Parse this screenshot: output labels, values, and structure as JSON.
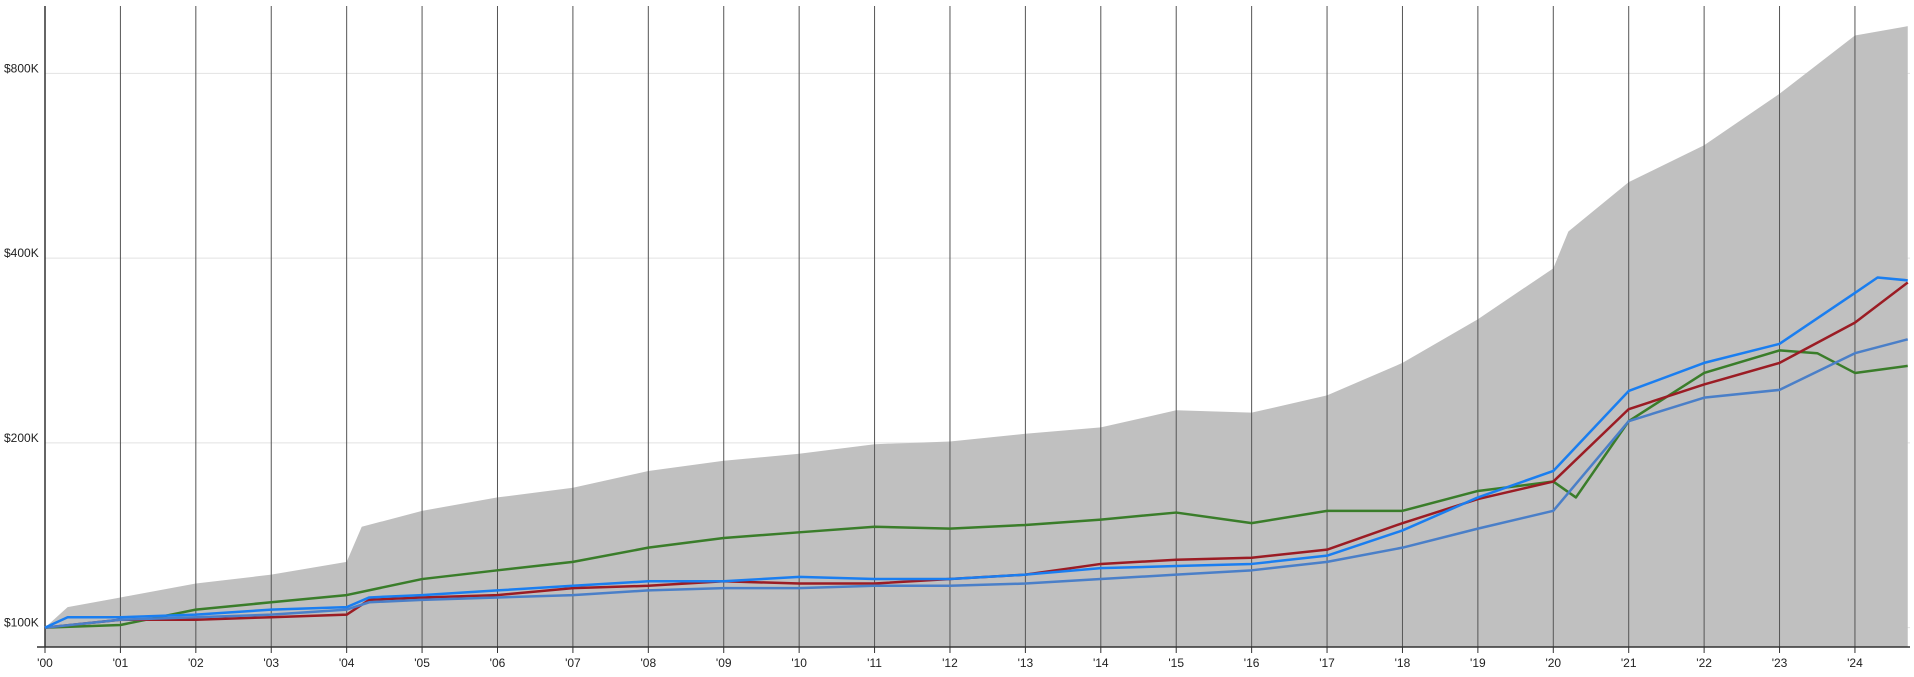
{
  "chart_data": {
    "type": "line",
    "log_y": true,
    "grid_x": true,
    "grid_y": true,
    "xlim": [
      0,
      24.73
    ],
    "xticks": [
      {
        "value": 0,
        "label": "'00"
      },
      {
        "value": 1,
        "label": "'01"
      },
      {
        "value": 2,
        "label": "'02"
      },
      {
        "value": 3,
        "label": "'03"
      },
      {
        "value": 4,
        "label": "'04"
      },
      {
        "value": 5,
        "label": "'05"
      },
      {
        "value": 6,
        "label": "'06"
      },
      {
        "value": 7,
        "label": "'07"
      },
      {
        "value": 8,
        "label": "'08"
      },
      {
        "value": 9,
        "label": "'09"
      },
      {
        "value": 10,
        "label": "'10"
      },
      {
        "value": 11,
        "label": "'11"
      },
      {
        "value": 12,
        "label": "'12"
      },
      {
        "value": 13,
        "label": "'13"
      },
      {
        "value": 14,
        "label": "'14"
      },
      {
        "value": 15,
        "label": "'15"
      },
      {
        "value": 16,
        "label": "'16"
      },
      {
        "value": 17,
        "label": "'17"
      },
      {
        "value": 18,
        "label": "'18"
      },
      {
        "value": 19,
        "label": "'19"
      },
      {
        "value": 20,
        "label": "'20"
      },
      {
        "value": 21,
        "label": "'21"
      },
      {
        "value": 22,
        "label": "'22"
      },
      {
        "value": 23,
        "label": "'23"
      },
      {
        "value": 24,
        "label": "'24"
      }
    ],
    "ylim": [
      93000,
      1030000
    ],
    "yticks": [
      {
        "value": 100000,
        "label": "$100K"
      },
      {
        "value": 200000,
        "label": "$200K"
      },
      {
        "value": 400000,
        "label": "$400K"
      },
      {
        "value": 800000,
        "label": "$800K"
      }
    ],
    "series": [
      {
        "type": "area",
        "color": "#c0c0c0",
        "x": [
          0,
          0.3,
          1,
          2,
          3,
          4,
          4.2,
          5,
          6,
          7,
          8,
          9,
          10,
          11,
          12,
          13,
          14,
          15,
          16,
          17,
          18,
          19,
          20,
          20.2,
          21,
          22,
          23,
          24,
          24.7
        ],
        "values": [
          100000,
          108000,
          112000,
          118000,
          122000,
          128000,
          146000,
          155000,
          163000,
          169000,
          180000,
          187000,
          192000,
          199000,
          201000,
          207000,
          212000,
          226000,
          224000,
          239000,
          270000,
          318000,
          385000,
          442000,
          532000,
          611000,
          741000,
          922000,
          955000
        ]
      },
      {
        "type": "line",
        "color": "#3a7d2a",
        "x": [
          0,
          1,
          2,
          3,
          4,
          5,
          6,
          7,
          8,
          9,
          10,
          11,
          12,
          13,
          14,
          15,
          16,
          17,
          18,
          19,
          20,
          20.3,
          21,
          22,
          23,
          23.5,
          24,
          24.7
        ],
        "values": [
          100000,
          101000,
          107000,
          110000,
          113000,
          120000,
          124000,
          128000,
          135000,
          140000,
          143000,
          146000,
          145000,
          147000,
          150000,
          154000,
          148000,
          155000,
          155000,
          167000,
          173000,
          163000,
          217000,
          260000,
          283000,
          280000,
          260000,
          267000
        ]
      },
      {
        "type": "line",
        "color": "#9b1c24",
        "x": [
          0,
          1,
          2,
          3,
          4,
          4.3,
          5,
          6,
          7,
          8,
          9,
          10,
          11,
          12,
          13,
          14,
          15,
          16,
          17,
          18,
          19,
          20,
          21,
          22,
          23,
          24,
          24.7
        ],
        "values": [
          100000,
          103000,
          103000,
          104000,
          105000,
          111000,
          112000,
          113000,
          116000,
          117000,
          119000,
          118000,
          118000,
          120000,
          122000,
          127000,
          129000,
          130000,
          134000,
          148000,
          162000,
          173000,
          227000,
          249000,
          270000,
          314000,
          365000
        ]
      },
      {
        "type": "line",
        "color": "#4a7fc8",
        "x": [
          0,
          1,
          2,
          3,
          4,
          4.3,
          5,
          6,
          7,
          8,
          9,
          10,
          11,
          12,
          13,
          14,
          15,
          16,
          17,
          18,
          19,
          20,
          21,
          22,
          23,
          24,
          24.7
        ],
        "values": [
          100000,
          103000,
          104000,
          105000,
          107000,
          110000,
          111000,
          112000,
          113000,
          115000,
          116000,
          116000,
          117000,
          117000,
          118000,
          120000,
          122000,
          124000,
          128000,
          135000,
          145000,
          155000,
          217000,
          237000,
          244000,
          280000,
          295000
        ]
      },
      {
        "type": "line",
        "color": "#1a7ef0",
        "x": [
          0,
          0.3,
          1,
          2,
          3,
          4,
          4.3,
          5,
          6,
          7,
          8,
          9,
          10,
          11,
          12,
          13,
          14,
          15,
          16,
          17,
          18,
          19,
          20,
          21,
          22,
          23,
          24,
          24.3,
          24.7
        ],
        "values": [
          100000,
          104000,
          104000,
          105000,
          107000,
          108000,
          112000,
          113000,
          115000,
          117000,
          119000,
          119000,
          121000,
          120000,
          120000,
          122000,
          125000,
          126000,
          127000,
          131000,
          144000,
          163000,
          180000,
          243000,
          270000,
          290000,
          351000,
          372000,
          368000
        ]
      }
    ]
  }
}
